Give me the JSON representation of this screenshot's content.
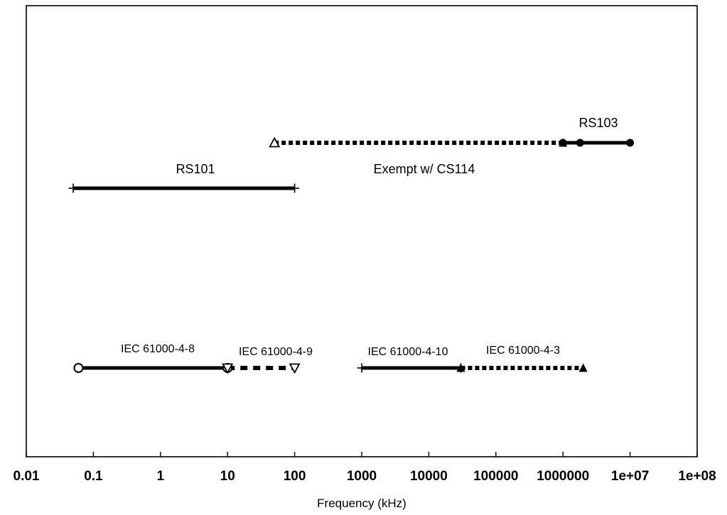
{
  "chart_data": {
    "type": "range",
    "xlabel": "Frequency (kHz)",
    "xscale": "log",
    "xlim": [
      0.01,
      100000000
    ],
    "grid": false,
    "legend": "none",
    "ticks": [
      {
        "value": 0.01,
        "label": "0.01"
      },
      {
        "value": 0.1,
        "label": "0.1"
      },
      {
        "value": 1,
        "label": "1"
      },
      {
        "value": 10,
        "label": "10"
      },
      {
        "value": 100,
        "label": "100"
      },
      {
        "value": 1000,
        "label": "1000"
      },
      {
        "value": 10000,
        "label": "10000"
      },
      {
        "value": 100000,
        "label": "100000"
      },
      {
        "value": 1000000,
        "label": "1000000"
      },
      {
        "value": 10000000,
        "label": "1e+07"
      },
      {
        "value": 100000000,
        "label": "1e+08"
      }
    ],
    "ranges": [
      {
        "label": "RS101",
        "start": 0.05,
        "end": 100,
        "row": "middle",
        "style": "solid",
        "marker_start": "plus",
        "marker_end": "plus"
      },
      {
        "label": "Exempt w/ CS114",
        "start": 50,
        "end": 1000000,
        "row": "upper",
        "style": "dotted",
        "marker_start": "open-triangle",
        "marker_end": "filled-triangle"
      },
      {
        "label": "RS103",
        "start": 1000000,
        "end": 10000000,
        "row": "upper",
        "style": "solid",
        "marker_start": "filled-circle",
        "marker_mid": 1800000,
        "marker_end": "filled-circle"
      },
      {
        "label": "IEC 61000-4-8",
        "start": 0.06,
        "end": 10,
        "row": "lower",
        "style": "solid",
        "marker_start": "open-circle",
        "marker_end": "open-circle"
      },
      {
        "label": "IEC 61000-4-9",
        "start": 10,
        "end": 100,
        "row": "lower",
        "style": "dashed",
        "marker_start": "open-down-triangle",
        "marker_end": "open-down-triangle"
      },
      {
        "label": "IEC 61000-4-10",
        "start": 1000,
        "end": 30000,
        "row": "lower",
        "style": "solid",
        "marker_start": "plus",
        "marker_end": "plus"
      },
      {
        "label": "IEC 61000-4-3",
        "start": 30000,
        "end": 2000000,
        "row": "lower",
        "style": "dotted",
        "marker_start": "filled-triangle",
        "marker_end": "filled-triangle"
      }
    ],
    "colors": {
      "ink": "#000000",
      "background": "#ffffff"
    }
  }
}
